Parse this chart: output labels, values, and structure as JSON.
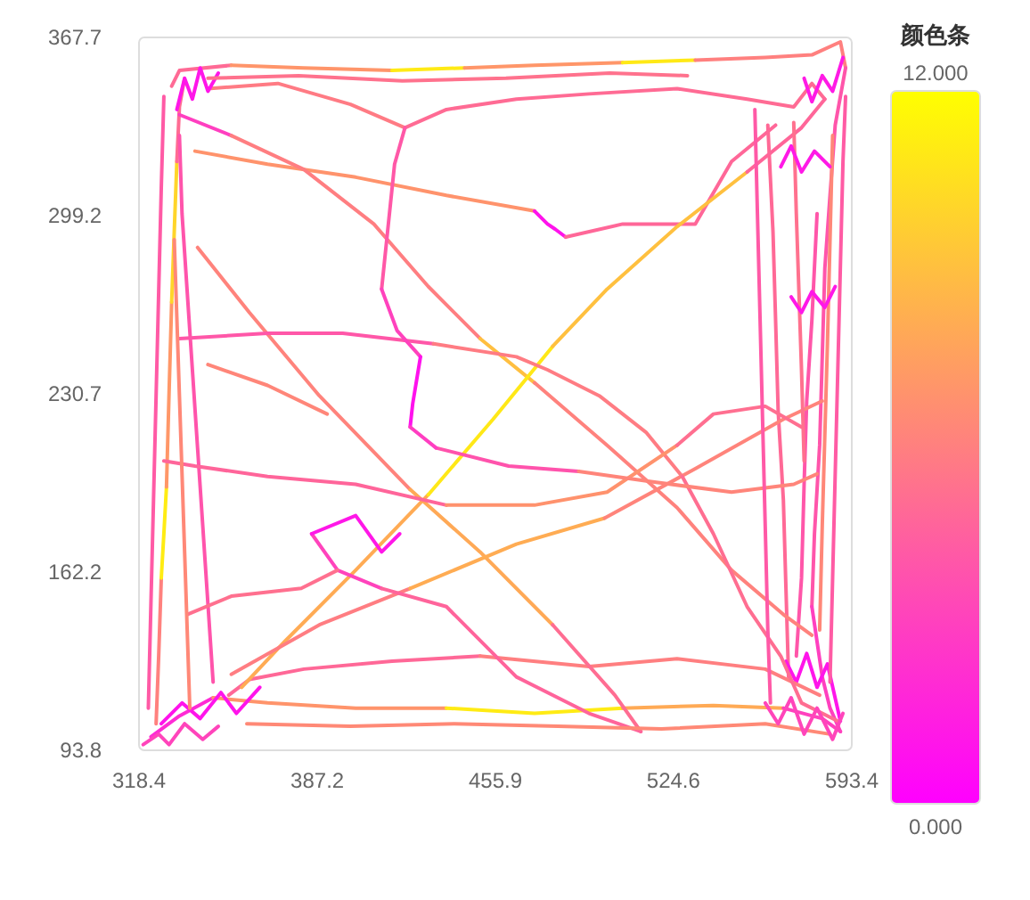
{
  "chart_data": {
    "type": "line",
    "xlim": [
      318.4,
      593.4
    ],
    "ylim": [
      93.8,
      367.7
    ],
    "xticks": [
      318.4,
      387.2,
      455.9,
      524.6,
      593.4
    ],
    "yticks": [
      93.8,
      162.2,
      230.7,
      299.2,
      367.7
    ],
    "clabel": "颜色条",
    "clim": [
      0,
      12
    ],
    "cticks": [
      {
        "value": 12,
        "label": "12.000"
      },
      {
        "value": 0,
        "label": "0.000"
      }
    ],
    "marker": "none",
    "line_style": "solid",
    "series": [
      {
        "color": "#ff6a95",
        "x": [
          331,
          334,
          354
        ],
        "values": [
          349,
          355,
          357
        ]
      },
      {
        "color": "#ff956a",
        "x": [
          354,
          382,
          416
        ],
        "values": [
          357,
          356,
          355
        ]
      },
      {
        "color": "#ffea15",
        "x": [
          416,
          444
        ],
        "values": [
          355,
          356
        ]
      },
      {
        "color": "#ff9669",
        "x": [
          444,
          471,
          505
        ],
        "values": [
          356,
          357,
          358
        ]
      },
      {
        "color": "#ffe916",
        "x": [
          505,
          533
        ],
        "values": [
          358,
          359
        ]
      },
      {
        "color": "#ff807f",
        "x": [
          533,
          560,
          578,
          589,
          591
        ],
        "values": [
          359,
          360,
          361,
          366,
          356
        ]
      },
      {
        "color": "#ff7b84",
        "x": [
          345,
          372,
          400,
          421
        ],
        "values": [
          348,
          350,
          342,
          333
        ]
      },
      {
        "color": "#ff6b94",
        "x": [
          421,
          437,
          464,
          492,
          526,
          553,
          571,
          578,
          583
        ],
        "values": [
          333,
          340,
          344,
          346,
          348,
          344,
          341,
          350,
          344
        ]
      },
      {
        "color": "#ff55aa",
        "x": [
          578,
          579,
          581,
          582,
          583,
          585,
          587,
          591
        ],
        "values": [
          149,
          177,
          211,
          245,
          279,
          307,
          334,
          356
        ]
      },
      {
        "color": "#ff40bf",
        "x": [
          578,
          582,
          585,
          589
        ],
        "values": [
          149,
          122,
          110,
          101
        ]
      },
      {
        "color": "#ff6996",
        "x": [
          561,
          563,
          564,
          565,
          567,
          568,
          569
        ],
        "values": [
          334,
          293,
          259,
          224,
          190,
          156,
          122
        ]
      },
      {
        "color": "#ff56a9",
        "x": [
          572,
          574,
          575,
          576,
          578,
          580
        ],
        "values": [
          130,
          160,
          196,
          228,
          259,
          300
        ]
      },
      {
        "color": "#ff15ea",
        "x": [
          568,
          572,
          576,
          580,
          584,
          589
        ],
        "values": [
          128,
          120,
          131,
          118,
          127,
          105
        ]
      },
      {
        "color": "#ff2ad5",
        "x": [
          323,
          334,
          347
        ],
        "values": [
          99,
          107,
          114
        ]
      },
      {
        "color": "#ff946b",
        "x": [
          347,
          368,
          402,
          437
        ],
        "values": [
          114,
          112,
          110,
          110
        ]
      },
      {
        "color": "#ffeb14",
        "x": [
          437,
          471,
          505
        ],
        "values": [
          110,
          108,
          110
        ]
      },
      {
        "color": "#ffaa55",
        "x": [
          505,
          540,
          567
        ],
        "values": [
          110,
          111,
          110
        ]
      },
      {
        "color": "#ff41be",
        "x": [
          567,
          582,
          589
        ],
        "values": [
          110,
          106,
          101
        ]
      },
      {
        "color": "#ff6897",
        "x": [
          353,
          361,
          382,
          416,
          450
        ],
        "values": [
          115,
          121,
          125,
          128,
          130
        ]
      },
      {
        "color": "#ff7f80",
        "x": [
          450,
          492,
          526,
          560,
          581
        ],
        "values": [
          130,
          126,
          129,
          125,
          115
        ]
      },
      {
        "color": "#ff14eb",
        "x": [
          327,
          335,
          342,
          350,
          356,
          365
        ],
        "values": [
          104,
          112,
          106,
          116,
          108,
          118
        ]
      },
      {
        "color": "#ff817e",
        "x": [
          325,
          326,
          327
        ],
        "values": [
          104,
          130,
          160
        ]
      },
      {
        "color": "#ffec13",
        "x": [
          327,
          328,
          329
        ],
        "values": [
          160,
          177,
          195
        ]
      },
      {
        "color": "#ff9768",
        "x": [
          329,
          330,
          331
        ],
        "values": [
          195,
          231,
          266
        ]
      },
      {
        "color": "#ffd52a",
        "x": [
          331,
          332,
          333
        ],
        "values": [
          266,
          293,
          320
        ]
      },
      {
        "color": "#ff6c93",
        "x": [
          333,
          334,
          336
        ],
        "values": [
          320,
          341,
          352
        ]
      },
      {
        "color": "#ff54ab",
        "x": [
          334,
          335,
          337,
          339,
          341,
          343,
          345,
          347
        ],
        "values": [
          330,
          300,
          270,
          240,
          210,
          180,
          150,
          120
        ]
      },
      {
        "color": "#ff16e9",
        "x": [
          333,
          336,
          339,
          342,
          345,
          349
        ],
        "values": [
          340,
          352,
          344,
          356,
          347,
          354
        ]
      },
      {
        "color": "#ff936c",
        "x": [
          340,
          368,
          402,
          437,
          471
        ],
        "values": [
          324,
          319,
          314,
          307,
          301
        ]
      },
      {
        "color": "#ff13ec",
        "x": [
          471,
          476,
          479,
          483
        ],
        "values": [
          301,
          296,
          294,
          291
        ]
      },
      {
        "color": "#ff6798",
        "x": [
          483,
          505,
          533,
          547,
          564
        ],
        "values": [
          291,
          296,
          296,
          320,
          334
        ]
      },
      {
        "color": "#ff3fc0",
        "x": [
          334,
          354
        ],
        "values": [
          338,
          330
        ]
      },
      {
        "color": "#ff7e81",
        "x": [
          354,
          382,
          409,
          430,
          450
        ],
        "values": [
          330,
          317,
          296,
          272,
          252
        ]
      },
      {
        "color": "#ffbf40",
        "x": [
          450,
          471
        ],
        "values": [
          252,
          235
        ]
      },
      {
        "color": "#ff827d",
        "x": [
          471,
          499,
          526,
          547,
          567,
          578
        ],
        "values": [
          235,
          211,
          187,
          163,
          146,
          138
        ]
      },
      {
        "color": "#ffab54",
        "x": [
          358,
          375,
          402,
          430
        ],
        "values": [
          118,
          136,
          163,
          192
        ]
      },
      {
        "color": "#ffe817",
        "x": [
          430,
          455,
          478
        ],
        "values": [
          192,
          221,
          249
        ]
      },
      {
        "color": "#ffc03f",
        "x": [
          478,
          499,
          526,
          553
        ],
        "values": [
          249,
          271,
          295,
          316
        ]
      },
      {
        "color": "#ff6699",
        "x": [
          553,
          574,
          583
        ],
        "values": [
          316,
          333,
          344
        ]
      },
      {
        "color": "#ff837c",
        "x": [
          341,
          361,
          388,
          423
        ],
        "values": [
          287,
          262,
          230,
          194
        ]
      },
      {
        "color": "#ffa956",
        "x": [
          423,
          450,
          478
        ],
        "values": [
          194,
          170,
          142
        ]
      },
      {
        "color": "#ff6d92",
        "x": [
          478,
          502,
          512
        ],
        "values": [
          142,
          115,
          101
        ]
      },
      {
        "color": "#ff7d82",
        "x": [
          354,
          388,
          423
        ],
        "values": [
          123,
          142,
          156
        ]
      },
      {
        "color": "#ffac53",
        "x": [
          423,
          464,
          498
        ],
        "values": [
          156,
          173,
          183
        ]
      },
      {
        "color": "#ff847b",
        "x": [
          498,
          533,
          567,
          582
        ],
        "values": [
          183,
          202,
          221,
          228
        ]
      },
      {
        "color": "#ff57a8",
        "x": [
          334,
          368,
          397,
          432
        ],
        "values": [
          252,
          254,
          254,
          250
        ]
      },
      {
        "color": "#ff7c83",
        "x": [
          432,
          464,
          476,
          496,
          514,
          528
        ],
        "values": [
          250,
          245,
          240,
          230,
          216,
          199
        ]
      },
      {
        "color": "#ff6e91",
        "x": [
          528,
          540,
          553,
          566,
          574,
          588
        ],
        "values": [
          199,
          177,
          149,
          130,
          112,
          105
        ]
      },
      {
        "color": "#ff659a",
        "x": [
          328,
          340,
          368,
          402,
          437
        ],
        "values": [
          205,
          203,
          199,
          196,
          188
        ]
      },
      {
        "color": "#ff926d",
        "x": [
          437,
          471,
          499,
          526
        ],
        "values": [
          188,
          188,
          193,
          211
        ]
      },
      {
        "color": "#ff6f90",
        "x": [
          526,
          540,
          560,
          574
        ],
        "values": [
          211,
          223,
          226,
          218
        ]
      },
      {
        "color": "#ff53ac",
        "x": [
          433,
          461,
          488
        ],
        "values": [
          210,
          203,
          201
        ]
      },
      {
        "color": "#ff857a",
        "x": [
          488,
          516,
          547,
          571,
          580
        ],
        "values": [
          201,
          197,
          193,
          196,
          200
        ]
      },
      {
        "color": "#ff58a7",
        "x": [
          412,
          417,
          421
        ],
        "values": [
          271,
          319,
          333
        ]
      },
      {
        "color": "#ff42bd",
        "x": [
          412,
          418,
          427
        ],
        "values": [
          271,
          255,
          245
        ]
      },
      {
        "color": "#ff12ed",
        "x": [
          423,
          424,
          427
        ],
        "values": [
          218,
          227,
          245
        ]
      },
      {
        "color": "#ff3ec1",
        "x": [
          423,
          433
        ],
        "values": [
          218,
          210
        ]
      },
      {
        "color": "#ff43bc",
        "x": [
          385,
          395,
          412
        ],
        "values": [
          177,
          163,
          156
        ]
      },
      {
        "color": "#ff649b",
        "x": [
          412,
          437,
          464,
          492,
          512
        ],
        "values": [
          156,
          149,
          122,
          108,
          101
        ]
      },
      {
        "color": "#ff17e8",
        "x": [
          385,
          402,
          412,
          419
        ],
        "values": [
          177,
          184,
          170,
          177
        ]
      },
      {
        "color": "#ff708f",
        "x": [
          337,
          354,
          381,
          395
        ],
        "values": [
          146,
          153,
          156,
          163
        ]
      },
      {
        "color": "#ff8679",
        "x": [
          345,
          368,
          391
        ],
        "values": [
          242,
          234,
          223
        ]
      },
      {
        "color": "#ff59a6",
        "x": [
          556,
          557,
          558,
          559,
          560,
          561,
          562
        ],
        "values": [
          340,
          300,
          260,
          220,
          180,
          140,
          112
        ]
      },
      {
        "color": "#ff8778",
        "x": [
          581,
          582,
          583,
          584,
          585,
          586
        ],
        "values": [
          140,
          180,
          215,
          250,
          290,
          330
        ]
      },
      {
        "color": "#ff718e",
        "x": [
          571,
          572,
          573,
          574,
          575
        ],
        "values": [
          335,
          300,
          270,
          240,
          205
        ]
      },
      {
        "color": "#ff18e7",
        "x": [
          570,
          574,
          578,
          583,
          587
        ],
        "values": [
          268,
          262,
          270,
          264,
          272
        ]
      },
      {
        "color": "#ff19e6",
        "x": [
          566,
          570,
          574,
          579,
          585
        ],
        "values": [
          318,
          326,
          316,
          324,
          318
        ]
      },
      {
        "color": "#ff1ae5",
        "x": [
          575,
          578,
          582,
          586,
          590
        ],
        "values": [
          352,
          343,
          353,
          347,
          360
        ]
      },
      {
        "color": "#ff8877",
        "x": [
          332,
          333,
          334,
          335,
          336,
          337,
          338
        ],
        "values": [
          290,
          260,
          230,
          200,
          170,
          140,
          110
        ]
      },
      {
        "color": "#ff5aa5",
        "x": [
          322,
          323,
          324,
          325,
          326,
          327,
          328
        ],
        "values": [
          110,
          150,
          190,
          230,
          270,
          310,
          345
        ]
      },
      {
        "color": "#ff44bb",
        "x": [
          320,
          326,
          330,
          336,
          343,
          349
        ],
        "values": [
          96,
          100,
          96,
          104,
          98,
          103
        ]
      },
      {
        "color": "#ff8976",
        "x": [
          360,
          400,
          440,
          480,
          520,
          560,
          585
        ],
        "values": [
          104,
          103,
          104,
          103,
          102,
          104,
          100
        ]
      },
      {
        "color": "#ff728d",
        "x": [
          345,
          380,
          420,
          460,
          500,
          530
        ],
        "values": [
          352,
          353,
          351,
          352,
          354,
          353
        ]
      },
      {
        "color": "#ff45ba",
        "x": [
          560,
          565,
          570,
          575,
          580,
          586,
          590
        ],
        "values": [
          112,
          104,
          114,
          100,
          110,
          98,
          108
        ]
      },
      {
        "color": "#ff5ba4",
        "x": [
          585,
          586,
          587,
          588,
          589,
          590,
          591
        ],
        "values": [
          120,
          160,
          200,
          240,
          280,
          320,
          345
        ]
      }
    ]
  }
}
